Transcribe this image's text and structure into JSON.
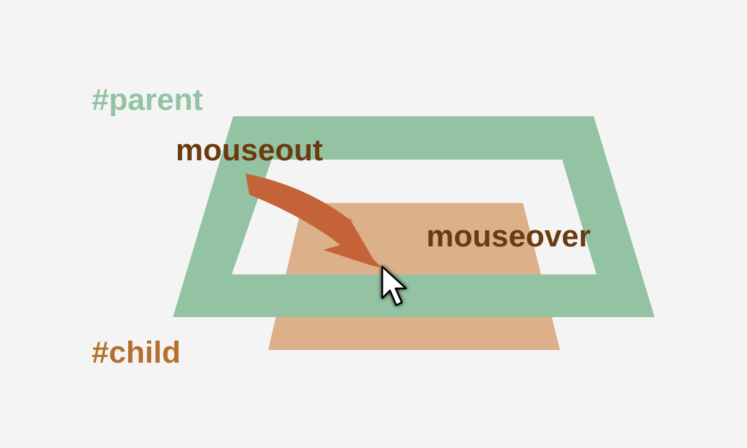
{
  "labels": {
    "parent": "#parent",
    "child": "#child",
    "mouseout": "mouseout",
    "mouseover": "mouseover"
  },
  "colors": {
    "background": "#f4f4f4",
    "parent_frame": "#93c3a3",
    "child_box": "#dcb088",
    "arrow": "#c36337",
    "parent_label": "#93c3a3",
    "child_label": "#b66f2c",
    "event_label": "#6b3a0f",
    "cursor_fill": "#ffffff",
    "cursor_stroke": "#000000"
  },
  "icons": {
    "cursor": "mouse-pointer-icon",
    "arrow": "curved-arrow-icon"
  }
}
